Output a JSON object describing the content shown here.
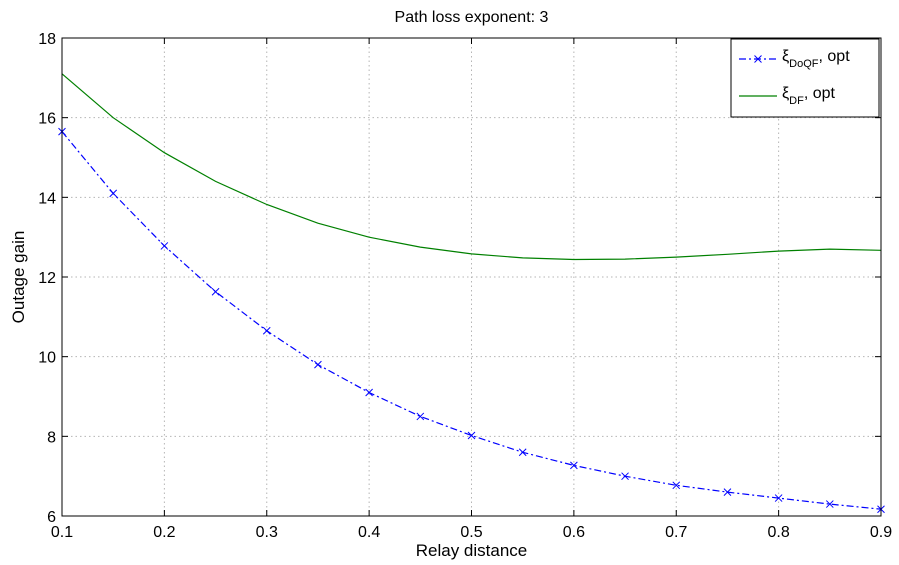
{
  "chart_data": {
    "type": "line",
    "title": "Path loss exponent: 3",
    "xlabel": "Relay distance",
    "ylabel": "Outage gain",
    "xlim": [
      0.1,
      0.9
    ],
    "ylim": [
      6,
      18
    ],
    "xticks": [
      0.1,
      0.2,
      0.3,
      0.4,
      0.5,
      0.6,
      0.7,
      0.8,
      0.9
    ],
    "xtick_labels": [
      "0.1",
      "0.2",
      "0.3",
      "0.4",
      "0.5",
      "0.6",
      "0.7",
      "0.8",
      "0.9"
    ],
    "yticks": [
      6,
      8,
      10,
      12,
      14,
      16,
      18
    ],
    "ytick_labels": [
      "6",
      "8",
      "10",
      "12",
      "14",
      "16",
      "18"
    ],
    "grid": true,
    "legend_position": "top-right",
    "series": [
      {
        "legend": {
          "symbol": "ξ",
          "subscript": "DoQF",
          "suffix": ", opt"
        },
        "color": "#0000ff",
        "line_style": "dash-dot",
        "marker": "x",
        "x": [
          0.1,
          0.15,
          0.2,
          0.25,
          0.3,
          0.35,
          0.4,
          0.45,
          0.5,
          0.55,
          0.6,
          0.65,
          0.7,
          0.75,
          0.8,
          0.85,
          0.9
        ],
        "y": [
          15.65,
          14.1,
          12.78,
          11.63,
          10.65,
          9.8,
          9.1,
          8.5,
          8.02,
          7.6,
          7.27,
          7.0,
          6.77,
          6.6,
          6.45,
          6.3,
          6.17
        ]
      },
      {
        "legend": {
          "symbol": "ξ",
          "subscript": "DF",
          "suffix": ", opt"
        },
        "color": "#008000",
        "line_style": "solid",
        "marker": "none",
        "x": [
          0.1,
          0.15,
          0.2,
          0.25,
          0.3,
          0.35,
          0.4,
          0.45,
          0.5,
          0.55,
          0.6,
          0.65,
          0.7,
          0.75,
          0.8,
          0.85,
          0.9
        ],
        "y": [
          17.1,
          16.0,
          15.12,
          14.4,
          13.82,
          13.35,
          13.0,
          12.75,
          12.58,
          12.48,
          12.44,
          12.45,
          12.5,
          12.57,
          12.65,
          12.7,
          12.67
        ]
      }
    ]
  }
}
